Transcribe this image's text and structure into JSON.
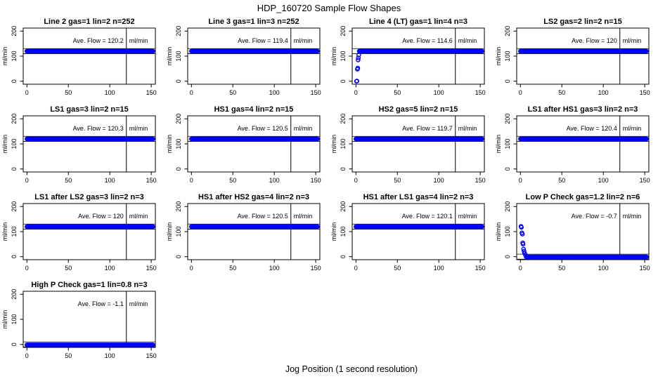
{
  "figure": {
    "title": "HDP_160720  Sample Flow Shapes",
    "xlabel": "Jog Position (1 second resolution)"
  },
  "chart_data": {
    "type": "scatter",
    "layout": "4x4 grid, 13 panels",
    "marker": "open circle",
    "marker_color": "#0000ff",
    "axis_color": "#000000",
    "xlabel": "Jog Position (1 second resolution)",
    "ylabel": "ml/min",
    "xticks": [
      0,
      50,
      100,
      150
    ],
    "yticks": [
      0,
      100,
      200
    ],
    "xlim": [
      -4.5,
      155
    ],
    "ylim": [
      -12,
      212
    ],
    "vline_x": 120,
    "tolerance_band": 10,
    "ave_label": "Ave. Flow = ",
    "plots": [
      {
        "title": "Line 2 gas=1 lin=2 n=252",
        "ave_flow": "120.2",
        "unit": "ml/min",
        "target": 120,
        "flat_level": 120,
        "flat_range": [
          0,
          152
        ],
        "lead_points": []
      },
      {
        "title": "Line 3 gas=1 lin=3 n=252",
        "ave_flow": "119.4",
        "unit": "ml/min",
        "target": 120,
        "flat_level": 120,
        "flat_range": [
          0,
          152
        ],
        "lead_points": []
      },
      {
        "title": "Line 4 (LT) gas=1 lin=4 n=3",
        "ave_flow": "114.6",
        "unit": "ml/min",
        "target": 120,
        "flat_level": 120,
        "flat_range": [
          4,
          152
        ],
        "lead_points": [
          [
            0.8,
            0
          ],
          [
            1.2,
            1
          ],
          [
            1.8,
            48
          ],
          [
            2.2,
            52
          ],
          [
            2.6,
            85
          ],
          [
            3.0,
            93
          ],
          [
            3.4,
            105
          ]
        ]
      },
      {
        "title": "LS2 gas=2 lin=2 n=15",
        "ave_flow": "120",
        "unit": "ml/min",
        "target": 120,
        "flat_level": 120,
        "flat_range": [
          0,
          152
        ],
        "lead_points": []
      },
      {
        "title": "LS1 gas=3 lin=2 n=15",
        "ave_flow": "120.3",
        "unit": "ml/min",
        "target": 120,
        "flat_level": 120,
        "flat_range": [
          0,
          152
        ],
        "lead_points": []
      },
      {
        "title": "HS1 gas=4 lin=2 n=15",
        "ave_flow": "120.5",
        "unit": "ml/min",
        "target": 120,
        "flat_level": 120,
        "flat_range": [
          0,
          152
        ],
        "lead_points": []
      },
      {
        "title": "HS2 gas=5 lin=2 n=15",
        "ave_flow": "119.7",
        "unit": "ml/min",
        "target": 120,
        "flat_level": 120,
        "flat_range": [
          0,
          152
        ],
        "lead_points": []
      },
      {
        "title": "LS1 after HS1 gas=3 lin=2 n=3",
        "ave_flow": "120.4",
        "unit": "ml/min",
        "target": 120,
        "flat_level": 120,
        "flat_range": [
          0,
          152
        ],
        "lead_points": []
      },
      {
        "title": "LS1 after LS2 gas=3 lin=2 n=3",
        "ave_flow": "120",
        "unit": "ml/min",
        "target": 120,
        "flat_level": 120,
        "flat_range": [
          0,
          152
        ],
        "lead_points": []
      },
      {
        "title": "HS1 after HS2 gas=4 lin=2 n=3",
        "ave_flow": "120.5",
        "unit": "ml/min",
        "target": 120,
        "flat_level": 120,
        "flat_range": [
          0,
          152
        ],
        "lead_points": []
      },
      {
        "title": "HS1 after LS1 gas=4 lin=2 n=3",
        "ave_flow": "120.1",
        "unit": "ml/min",
        "target": 120,
        "flat_level": 120,
        "flat_range": [
          0,
          152
        ],
        "lead_points": []
      },
      {
        "title": "Low P Check gas=1.2 lin=2 n=6",
        "ave_flow": "-0.7",
        "unit": "ml/min",
        "target": 0,
        "flat_level": -1,
        "flat_range": [
          7,
          152
        ],
        "lead_points": [
          [
            0.8,
            121
          ],
          [
            1.2,
            117
          ],
          [
            1.8,
            95
          ],
          [
            2.4,
            90
          ],
          [
            2.8,
            55
          ],
          [
            3.2,
            50
          ],
          [
            3.8,
            30
          ],
          [
            4.4,
            22
          ],
          [
            5,
            14
          ],
          [
            6,
            7
          ]
        ]
      },
      {
        "title": "High P Check gas=1 lin=0.8 n=3",
        "ave_flow": "-1.1",
        "unit": "ml/min",
        "target": 0,
        "flat_level": -2,
        "flat_range": [
          0,
          152
        ],
        "lead_points": []
      }
    ]
  }
}
